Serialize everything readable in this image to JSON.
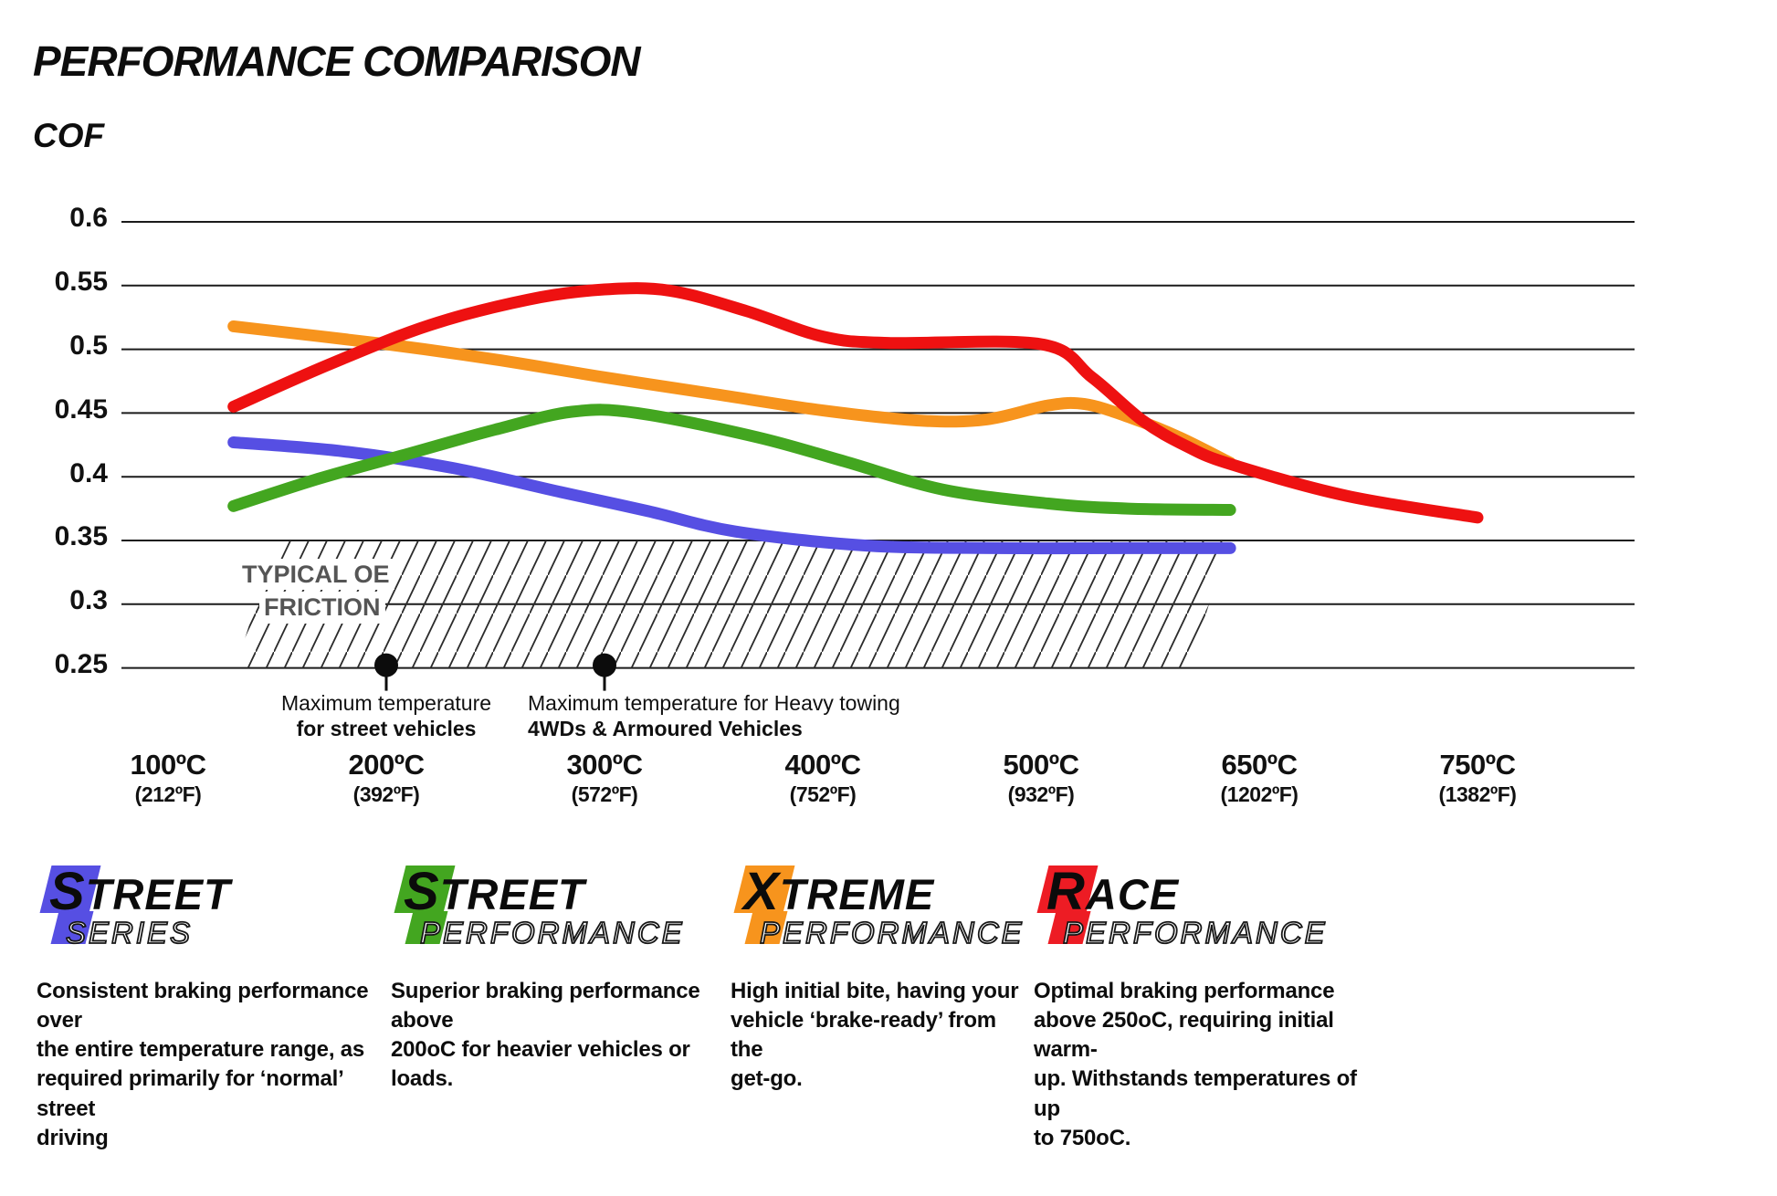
{
  "header": {
    "title": "PERFORMANCE COMPARISON",
    "axis_label": "COF"
  },
  "colors": {
    "grid": "#1b1b1b",
    "hatch": "#2b2b2b",
    "dot": "#0c0c0c",
    "oe_label": "#555555"
  },
  "chart_data": {
    "type": "line",
    "title": "PERFORMANCE COMPARISON",
    "ylabel": "COF",
    "xlabel": "",
    "ylim": [
      0.25,
      0.6
    ],
    "grid": "horizontal",
    "legend_position": "none",
    "y_ticks": [
      0.6,
      0.55,
      0.5,
      0.45,
      0.4,
      0.35,
      0.3,
      0.25
    ],
    "y_tick_labels": [
      "0.6",
      "0.55",
      "0.5",
      "0.45",
      "0.4",
      "0.35",
      "0.3",
      "0.25"
    ],
    "x_temps": [
      100,
      200,
      300,
      400,
      500,
      650,
      750
    ],
    "x_ticks": [
      {
        "c": "100ºC",
        "f": "(212ºF)"
      },
      {
        "c": "200ºC",
        "f": "(392ºF)"
      },
      {
        "c": "300ºC",
        "f": "(572ºF)"
      },
      {
        "c": "400ºC",
        "f": "(752ºF)"
      },
      {
        "c": "500ºC",
        "f": "(932ºF)"
      },
      {
        "c": "650ºC",
        "f": "(1202ºF)"
      },
      {
        "c": "750ºC",
        "f": "(1382ºF)"
      }
    ],
    "series": [
      {
        "name": "Street Series",
        "color": "#564fe3",
        "points": [
          [
            130,
            0.427
          ],
          [
            180,
            0.42
          ],
          [
            230,
            0.407
          ],
          [
            280,
            0.388
          ],
          [
            320,
            0.373
          ],
          [
            360,
            0.357
          ],
          [
            420,
            0.346
          ],
          [
            480,
            0.344
          ],
          [
            560,
            0.344
          ],
          [
            630,
            0.344
          ]
        ]
      },
      {
        "name": "Street Performance",
        "color": "#43a620",
        "points": [
          [
            130,
            0.377
          ],
          [
            170,
            0.399
          ],
          [
            210,
            0.418
          ],
          [
            250,
            0.437
          ],
          [
            285,
            0.451
          ],
          [
            315,
            0.45
          ],
          [
            370,
            0.431
          ],
          [
            410,
            0.412
          ],
          [
            455,
            0.39
          ],
          [
            505,
            0.379
          ],
          [
            560,
            0.375
          ],
          [
            630,
            0.374
          ]
        ]
      },
      {
        "name": "Xtreme Performance",
        "color": "#f7941d",
        "points": [
          [
            130,
            0.518
          ],
          [
            200,
            0.504
          ],
          [
            250,
            0.492
          ],
          [
            300,
            0.478
          ],
          [
            350,
            0.465
          ],
          [
            400,
            0.452
          ],
          [
            445,
            0.444
          ],
          [
            475,
            0.445
          ],
          [
            505,
            0.456
          ],
          [
            530,
            0.457
          ],
          [
            560,
            0.447
          ],
          [
            595,
            0.431
          ],
          [
            630,
            0.411
          ]
        ]
      },
      {
        "name": "Race Performance",
        "color": "#ee1111",
        "points": [
          [
            130,
            0.455
          ],
          [
            175,
            0.489
          ],
          [
            220,
            0.519
          ],
          [
            265,
            0.539
          ],
          [
            300,
            0.547
          ],
          [
            330,
            0.546
          ],
          [
            365,
            0.53
          ],
          [
            400,
            0.51
          ],
          [
            430,
            0.505
          ],
          [
            500,
            0.504
          ],
          [
            535,
            0.478
          ],
          [
            570,
            0.444
          ],
          [
            600,
            0.424
          ],
          [
            630,
            0.41
          ],
          [
            690,
            0.385
          ],
          [
            750,
            0.368
          ]
        ]
      }
    ],
    "oe_band": {
      "label_line1": "TYPICAL OE",
      "label_line2": "FRICTION",
      "from": 0.25,
      "to": 0.35
    },
    "annotations": [
      {
        "temp": 200,
        "cof": 0.25,
        "line1": "Maximum temperature",
        "line2": "for street vehicles"
      },
      {
        "temp": 300,
        "cof": 0.25,
        "line1": "Maximum temperature for Heavy towing",
        "line2": "4WDs & Armoured Vehicles"
      }
    ]
  },
  "brands": [
    {
      "name": "Street Series",
      "color": "#564fe3",
      "word1_initial": "S",
      "word1_rest": "TREET",
      "word2": "SERIES",
      "description_lines": [
        "Consistent braking performance over",
        "the entire temperature range, as",
        "required primarily for ‘normal’ street",
        "driving"
      ]
    },
    {
      "name": "Street Performance",
      "color": "#43a620",
      "word1_initial": "S",
      "word1_rest": "TREET",
      "word2": "PERFORMANCE",
      "description_lines": [
        "Superior braking performance above",
        "200oC for heavier vehicles or loads."
      ]
    },
    {
      "name": "Xtreme Performance",
      "color": "#f7941d",
      "word1_initial": "X",
      "word1_rest": "TREME",
      "word2": "PERFORMANCE",
      "description_lines": [
        "High initial bite, having your",
        "vehicle ‘brake-ready’ from the",
        "get-go."
      ]
    },
    {
      "name": "Race Performance",
      "color": "#ed1c24",
      "word1_initial": "R",
      "word1_rest": "ACE",
      "word2": "PERFORMANCE",
      "description_lines": [
        "Optimal braking performance",
        "above 250oC, requiring initial warm-",
        "up. Withstands temperatures of up",
        "to 750oC."
      ]
    }
  ]
}
